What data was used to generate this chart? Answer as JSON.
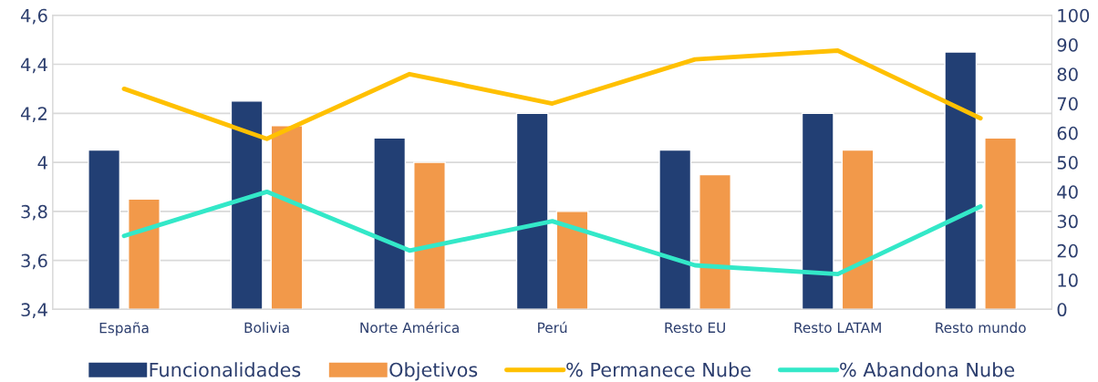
{
  "chart_data": {
    "type": "bar",
    "categories": [
      "España",
      "Bolivia",
      "Norte América",
      "Perú",
      "Resto EU",
      "Resto LATAM",
      "Resto mundo"
    ],
    "series": [
      {
        "name": "Funcionalidades",
        "color": "#223f74",
        "values": [
          4.05,
          4.25,
          4.1,
          4.2,
          4.05,
          4.2,
          4.45
        ]
      },
      {
        "name": "Objetivos",
        "color": "#f2994a",
        "values": [
          3.85,
          4.15,
          4.0,
          3.8,
          3.95,
          4.05,
          4.1
        ]
      },
      {
        "name": "% Permanece Nube",
        "type": "line",
        "axis": "y2",
        "color": "#ffc000",
        "values": [
          75,
          58,
          80,
          70,
          85,
          88,
          65
        ]
      },
      {
        "name": "% Abandona Nube",
        "type": "line",
        "axis": "y2",
        "color": "#33e8c8",
        "values": [
          25,
          40,
          20,
          30,
          15,
          12,
          35
        ]
      }
    ],
    "ylim": [
      3.4,
      4.6
    ],
    "yticks": [
      {
        "value": 3.4,
        "label": "3,4"
      },
      {
        "value": 3.6,
        "label": "3,6"
      },
      {
        "value": 3.8,
        "label": "3,8"
      },
      4,
      {
        "value": 4.2,
        "label": "4,2"
      },
      {
        "value": 4.4,
        "label": "4,4"
      },
      {
        "value": 4.6,
        "label": "4,6"
      }
    ],
    "y2lim": [
      0,
      100
    ],
    "y2ticks": [
      0,
      10,
      20,
      30,
      40,
      50,
      60,
      70,
      80,
      90,
      100
    ],
    "grid": "y",
    "legend": "bottom",
    "marker": "none",
    "line_style": "solid"
  }
}
